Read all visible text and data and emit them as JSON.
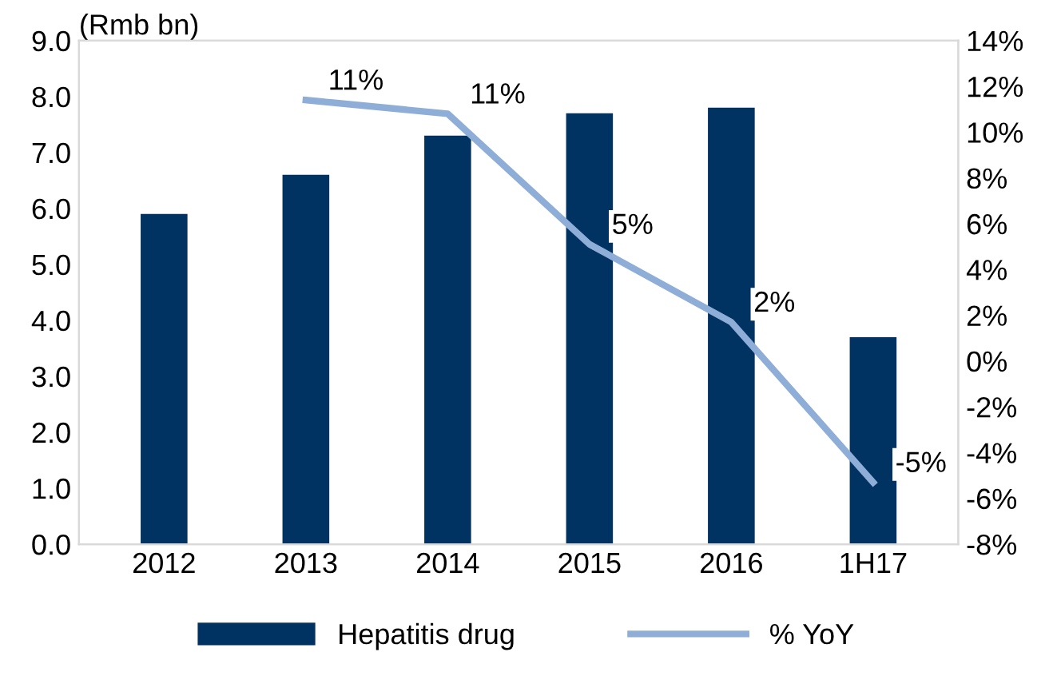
{
  "chart_data": {
    "type": "bar",
    "ylabel": "(Rmb bn)",
    "categories": [
      "2012",
      "2013",
      "2014",
      "2015",
      "2016",
      "1H17"
    ],
    "series": [
      {
        "name": "Hepatitis drug",
        "color": "#003262",
        "values": [
          5.9,
          6.6,
          7.3,
          7.7,
          7.8,
          3.7
        ]
      },
      {
        "name": "% YoY",
        "type": "line",
        "axis": "y2",
        "color": "#8eaed8",
        "values": [
          null,
          11.4,
          10.8,
          5.1,
          1.7,
          -5.3
        ],
        "value_labels": [
          null,
          "11%",
          "11%",
          "5%",
          "2%",
          "-5%"
        ]
      }
    ],
    "ylim": [
      0,
      9
    ],
    "yticks": [
      {
        "value": 0,
        "label": "0.0"
      },
      {
        "value": 1,
        "label": "1.0"
      },
      {
        "value": 2,
        "label": "2.0"
      },
      {
        "value": 3,
        "label": "3.0"
      },
      {
        "value": 4,
        "label": "4.0"
      },
      {
        "value": 5,
        "label": "5.0"
      },
      {
        "value": 6,
        "label": "6.0"
      },
      {
        "value": 7,
        "label": "7.0"
      },
      {
        "value": 8,
        "label": "8.0"
      },
      {
        "value": 9,
        "label": "9.0"
      }
    ],
    "y2lim": [
      -8,
      14
    ],
    "y2ticks": [
      {
        "value": -8,
        "label": "-8%"
      },
      {
        "value": -6,
        "label": "-6%"
      },
      {
        "value": -4,
        "label": "-4%"
      },
      {
        "value": -2,
        "label": "-2%"
      },
      {
        "value": 0,
        "label": "0%"
      },
      {
        "value": 2,
        "label": "2%"
      },
      {
        "value": 4,
        "label": "4%"
      },
      {
        "value": 6,
        "label": "6%"
      },
      {
        "value": 8,
        "label": "8%"
      },
      {
        "value": 10,
        "label": "10%"
      },
      {
        "value": 12,
        "label": "12%"
      },
      {
        "value": 14,
        "label": "14%"
      }
    ],
    "grid": false,
    "legend": "bottom",
    "marker": "none",
    "line_style": "solid"
  }
}
